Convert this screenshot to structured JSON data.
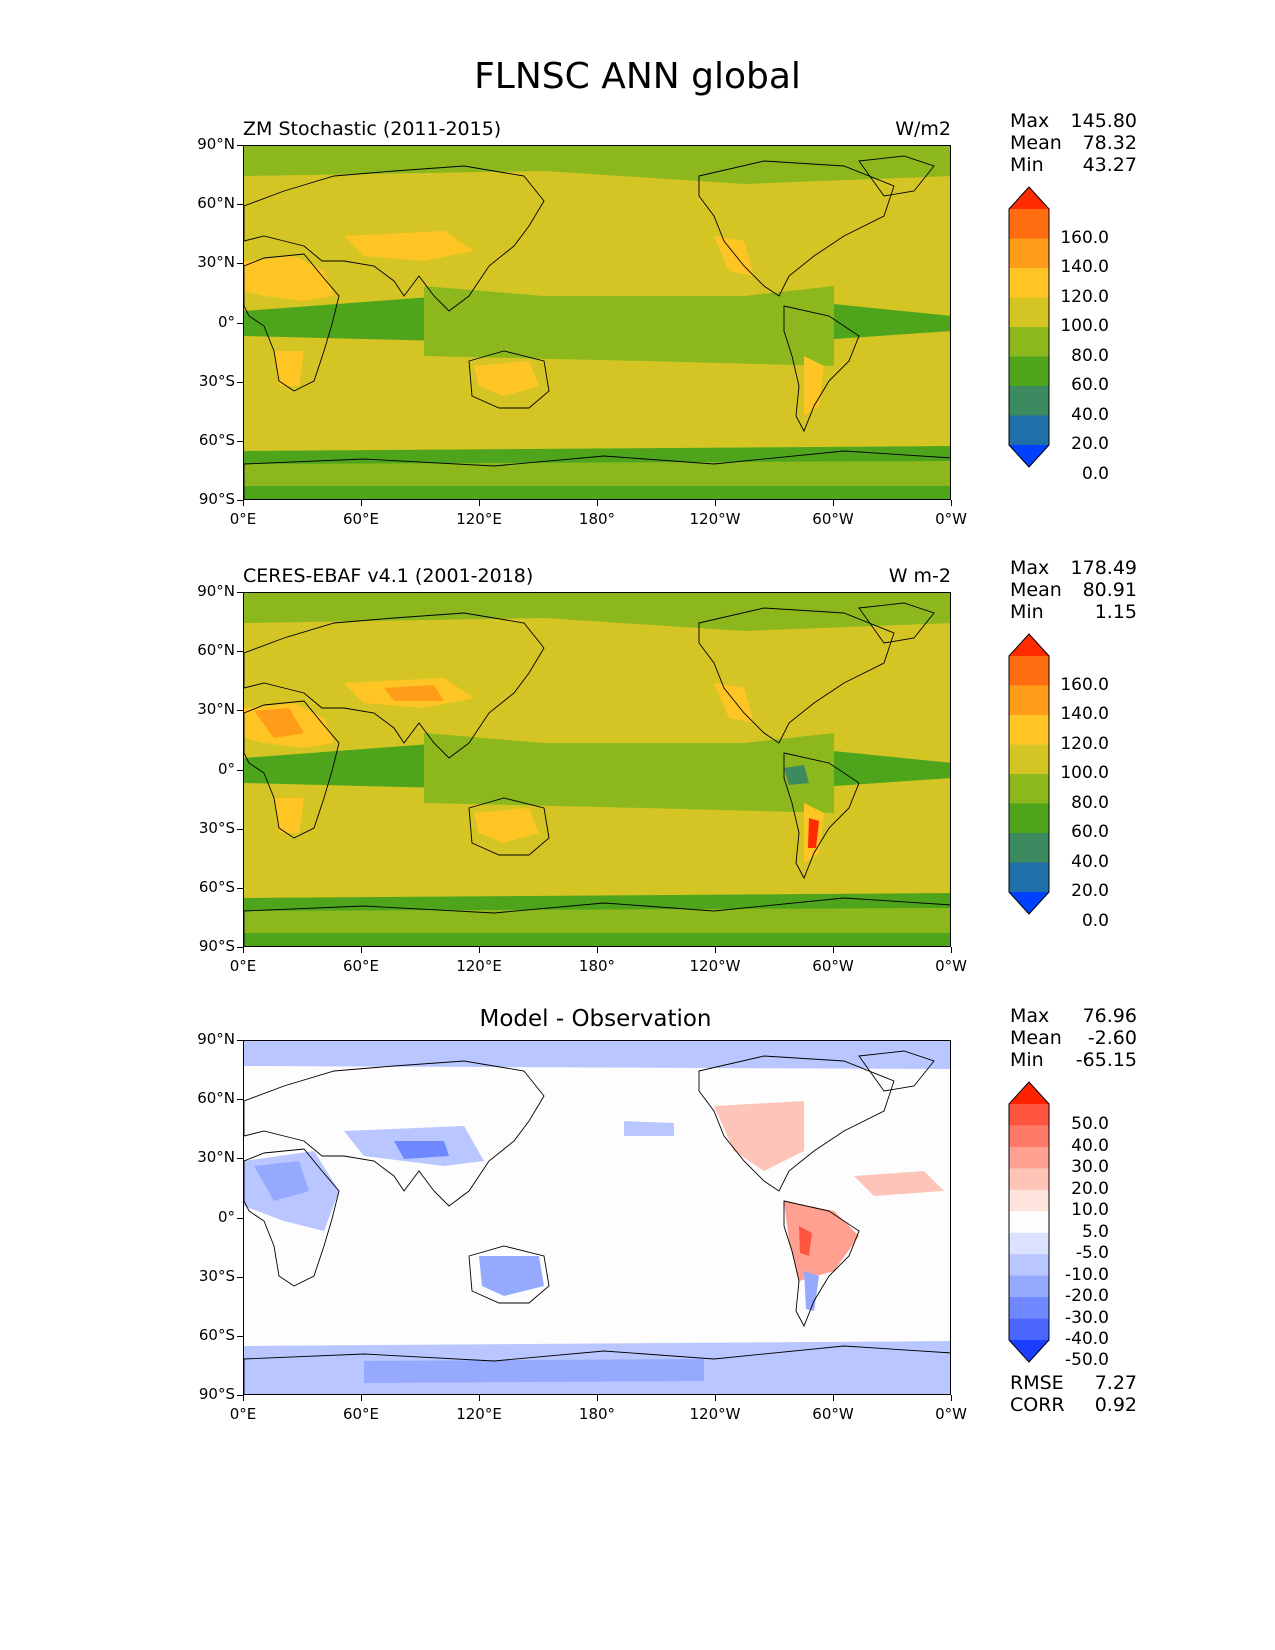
{
  "figure_title": "FLNSC ANN global",
  "xticks": [
    "0°E",
    "60°E",
    "120°E",
    "180°",
    "120°W",
    "60°W",
    "0°W"
  ],
  "yticks": [
    "90°N",
    "60°N",
    "30°N",
    "0°",
    "30°S",
    "60°S",
    "90°S"
  ],
  "panels": [
    {
      "title_left": "ZM Stochastic (2011-2015)",
      "title_center": "",
      "units": "W/m2",
      "stats": [
        {
          "label": "Max",
          "value": "145.80"
        },
        {
          "label": "Mean",
          "value": "78.32"
        },
        {
          "label": "Min",
          "value": "43.27"
        }
      ],
      "colorbar_labels": [
        "160.0",
        "140.0",
        "120.0",
        "100.0",
        "80.0",
        "60.0",
        "40.0",
        "20.0",
        "0.0"
      ],
      "colorbar_colors": [
        "#ff2a00",
        "#ff6d10",
        "#ff9d1a",
        "#ffc525",
        "#d4c524",
        "#8cb81e",
        "#4ea51c",
        "#3c8a60",
        "#1f6fa8",
        "#0040ff"
      ]
    },
    {
      "title_left": "CERES-EBAF v4.1 (2001-2018)",
      "title_center": "",
      "units": "W m-2",
      "stats": [
        {
          "label": "Max",
          "value": "178.49"
        },
        {
          "label": "Mean",
          "value": "80.91"
        },
        {
          "label": "Min",
          "value": "1.15"
        }
      ],
      "colorbar_labels": [
        "160.0",
        "140.0",
        "120.0",
        "100.0",
        "80.0",
        "60.0",
        "40.0",
        "20.0",
        "0.0"
      ],
      "colorbar_colors": [
        "#ff2a00",
        "#ff6d10",
        "#ff9d1a",
        "#ffc525",
        "#d4c524",
        "#8cb81e",
        "#4ea51c",
        "#3c8a60",
        "#1f6fa8",
        "#0040ff"
      ]
    },
    {
      "title_left": "",
      "title_center": "Model - Observation",
      "units": "",
      "stats": [
        {
          "label": "Max",
          "value": "76.96"
        },
        {
          "label": "Mean",
          "value": "-2.60"
        },
        {
          "label": "Min",
          "value": "-65.15"
        }
      ],
      "colorbar_labels": [
        "50.0",
        "40.0",
        "30.0",
        "20.0",
        "10.0",
        "5.0",
        "-5.0",
        "-10.0",
        "-20.0",
        "-30.0",
        "-40.0",
        "-50.0"
      ],
      "colorbar_colors": [
        "#ff2200",
        "#ff5540",
        "#ff7a66",
        "#ffa090",
        "#ffc4b8",
        "#ffe4de",
        "#fdfdfd",
        "#dbe2ff",
        "#b9c6ff",
        "#95a9ff",
        "#6f88ff",
        "#4a66ff",
        "#1a3dff"
      ],
      "rmse": {
        "label": "RMSE",
        "value": "7.27"
      },
      "corr": {
        "label": "CORR",
        "value": "0.92"
      }
    }
  ]
}
